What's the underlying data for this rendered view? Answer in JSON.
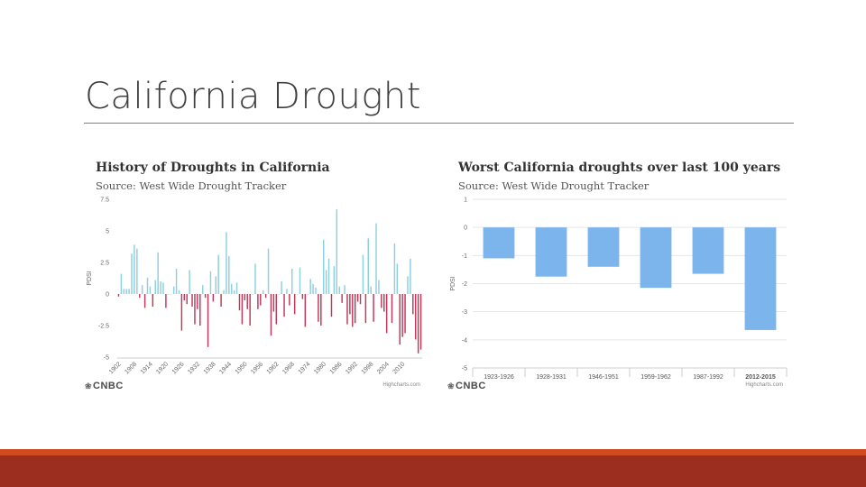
{
  "slide": {
    "title": "California Drought"
  },
  "brand": {
    "logo_text": "CNBC",
    "logo_icon": "peacock-icon",
    "credit": "Highcharts.com"
  },
  "colors": {
    "positive": "#8ecfe0",
    "negative": "#c0395a",
    "bar": "#7cb5ec",
    "footer_strip": "#d24b1f",
    "footer_band": "#9c2e1f"
  },
  "chart_data": [
    {
      "type": "bar",
      "title": "History of Droughts in California",
      "subtitle": "Source: West Wide Drought Tracker",
      "ylabel": "PDSI",
      "xlabel": "",
      "ylim": [
        -5,
        7.5
      ],
      "yticks": [
        7.5,
        5,
        2.5,
        0,
        -2.5,
        -5
      ],
      "x_start": 1901,
      "x_tick_labels": [
        "1902",
        "1908",
        "1914",
        "1920",
        "1926",
        "1932",
        "1938",
        "1944",
        "1950",
        "1956",
        "1962",
        "1968",
        "1974",
        "1980",
        "1986",
        "1992",
        "1998",
        "2004",
        "2010"
      ],
      "values": [
        -0.2,
        1.6,
        0.4,
        0.4,
        0.4,
        3.2,
        3.9,
        3.6,
        -0.3,
        0.7,
        -1.1,
        1.3,
        0.6,
        -1.0,
        1.1,
        3.3,
        1.0,
        0.9,
        -1.1,
        0,
        0,
        0.6,
        2.0,
        0.3,
        -2.9,
        -0.5,
        -0.8,
        1.9,
        -1.0,
        -2.4,
        -1.2,
        -2.5,
        0.7,
        -0.3,
        -4.2,
        1.8,
        -0.6,
        1.4,
        3.1,
        -1.0,
        0.3,
        4.9,
        3.0,
        0.8,
        0.3,
        0.9,
        -1.3,
        -2.4,
        -0.5,
        -1.2,
        -2.5,
        0,
        2.4,
        -1.2,
        -0.9,
        0.3,
        -0.3,
        3.6,
        -3.3,
        -1.4,
        -2.4,
        0,
        1.0,
        -1.8,
        0.4,
        -0.9,
        2.0,
        -1.6,
        0,
        2.1,
        -0.4,
        -2.6,
        0,
        1.2,
        0.8,
        0.5,
        -2.2,
        -2.5,
        4.3,
        1.9,
        2.8,
        -1.8,
        2.2,
        6.7,
        0.6,
        -0.7,
        0.7,
        -2.4,
        -1.6,
        -2.6,
        -2.3,
        -0.6,
        -0.8,
        3.1,
        -2.3,
        4.4,
        0.6,
        -2.2,
        5.6,
        1.1,
        -1.1,
        -1.4,
        -3.1,
        0,
        -2.3,
        4.0,
        2.4,
        -4.0,
        -3.4,
        -3.1,
        1.4,
        2.8,
        -1.6,
        -3.6,
        -4.7,
        -4.4
      ]
    },
    {
      "type": "bar",
      "title": "Worst California droughts over last 100 years",
      "subtitle": "Source: West Wide Drought Tracker",
      "ylabel": "PDSI",
      "xlabel": "",
      "ylim": [
        -5,
        1
      ],
      "yticks": [
        1,
        0,
        -1,
        -2,
        -3,
        -4,
        -5
      ],
      "categories": [
        "1923-1926",
        "1928-1931",
        "1946-1951",
        "1959-1962",
        "1987-1992",
        "2012-2015"
      ],
      "values": [
        -1.1,
        -1.75,
        -1.4,
        -2.15,
        -1.65,
        -3.65
      ],
      "highlight_category": "2012-2015"
    }
  ]
}
